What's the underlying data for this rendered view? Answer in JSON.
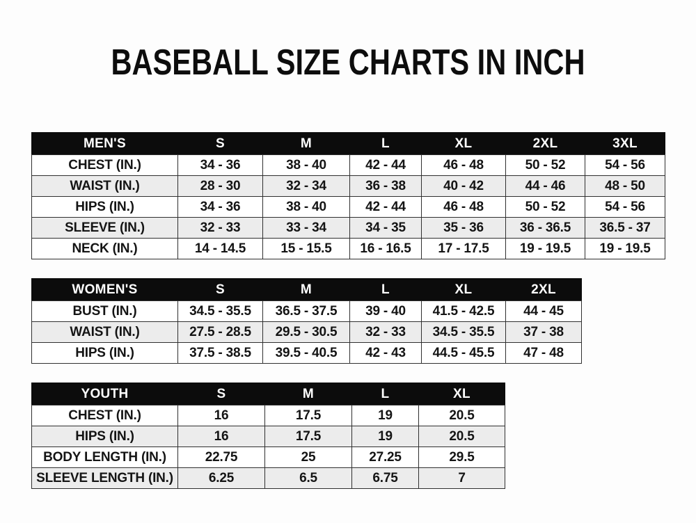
{
  "page": {
    "title": "BASEBALL SIZE CHARTS IN INCH",
    "units": "inches"
  },
  "colors": {
    "page_background": "#fdfdfd",
    "header_bar_background": "#0c0c0c",
    "header_bar_text": "#ffffff",
    "row_alternate_background": "#ececec",
    "row_background": "#ffffff",
    "border": "#2f2f2f",
    "text": "#141414"
  },
  "chart_data": [
    {
      "type": "table",
      "name": "mens",
      "columns": [
        "MEN'S",
        "S",
        "M",
        "L",
        "XL",
        "2XL",
        "3XL"
      ],
      "rows": [
        [
          "CHEST (IN.)",
          "34 - 36",
          "38 - 40",
          "42 - 44",
          "46 - 48",
          "50 - 52",
          "54 - 56"
        ],
        [
          "WAIST (IN.)",
          "28 - 30",
          "32 - 34",
          "36 - 38",
          "40 - 42",
          "44 - 46",
          "48 - 50"
        ],
        [
          "HIPS (IN.)",
          "34 - 36",
          "38 - 40",
          "42 - 44",
          "46 - 48",
          "50 - 52",
          "54 - 56"
        ],
        [
          "SLEEVE (IN.)",
          "32 - 33",
          "33 - 34",
          "34 - 35",
          "35 - 36",
          "36 - 36.5",
          "36.5 - 37"
        ],
        [
          "NECK (IN.)",
          "14 - 14.5",
          "15 - 15.5",
          "16 - 16.5",
          "17 - 17.5",
          "19 - 19.5",
          "19 - 19.5"
        ]
      ]
    },
    {
      "type": "table",
      "name": "womens",
      "columns": [
        "WOMEN'S",
        "S",
        "M",
        "L",
        "XL",
        "2XL"
      ],
      "rows": [
        [
          "BUST (IN.)",
          "34.5 - 35.5",
          "36.5 - 37.5",
          "39 - 40",
          "41.5 - 42.5",
          "44 - 45"
        ],
        [
          "WAIST (IN.)",
          "27.5 - 28.5",
          "29.5 - 30.5",
          "32 - 33",
          "34.5 - 35.5",
          "37 - 38"
        ],
        [
          "HIPS (IN.)",
          "37.5 - 38.5",
          "39.5 - 40.5",
          "42 - 43",
          "44.5 - 45.5",
          "47 - 48"
        ]
      ]
    },
    {
      "type": "table",
      "name": "youth",
      "columns": [
        "YOUTH",
        "S",
        "M",
        "L",
        "XL"
      ],
      "rows": [
        [
          "CHEST (IN.)",
          "16",
          "17.5",
          "19",
          "20.5"
        ],
        [
          "HIPS (IN.)",
          "16",
          "17.5",
          "19",
          "20.5"
        ],
        [
          "BODY LENGTH (IN.)",
          "22.75",
          "25",
          "27.25",
          "29.5"
        ],
        [
          "SLEEVE LENGTH (IN.)",
          "6.25",
          "6.5",
          "6.75",
          "7"
        ]
      ]
    }
  ]
}
